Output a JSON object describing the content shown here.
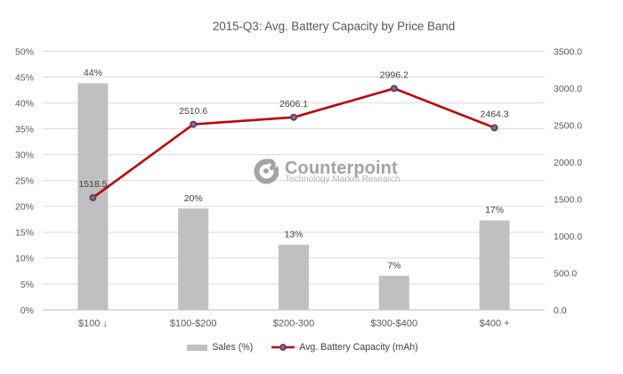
{
  "title": "2015-Q3: Avg. Battery Capacity by Price Band",
  "watermark": {
    "brand": "Counterpoint",
    "tagline": "Technology Market Research"
  },
  "legend": {
    "bar_label": "Sales (%)",
    "line_label": "Avg. Battery Capacity (mAh)"
  },
  "chart_data": {
    "type": "combo-bar-line",
    "title": "2015-Q3: Avg. Battery Capacity by Price Band",
    "categories": [
      "$100 ↓",
      "$100-$200",
      "$200-300",
      "$300-$400",
      "$400 +"
    ],
    "series": [
      {
        "name": "Sales (%)",
        "type": "bar",
        "axis": "left",
        "values": [
          43.8,
          19.6,
          12.6,
          6.6,
          17.3
        ],
        "labels": [
          "44%",
          "20%",
          "13%",
          "7%",
          "17%"
        ],
        "color": "#c0c0c0"
      },
      {
        "name": "Avg. Battery Capacity (mAh)",
        "type": "line",
        "axis": "right",
        "values": [
          1518.5,
          2510.6,
          2606.1,
          2996.2,
          2464.3
        ],
        "labels": [
          "1518.5",
          "2510.6",
          "2606.1",
          "2996.2",
          "2464.3"
        ],
        "color": "#c00000",
        "marker_fill": "#4e86c2",
        "marker_stroke": "#7e2f42"
      }
    ],
    "left_axis": {
      "min": 0,
      "max": 50,
      "step": 5,
      "ticks": [
        "0%",
        "5%",
        "10%",
        "15%",
        "20%",
        "25%",
        "30%",
        "35%",
        "40%",
        "45%",
        "50%"
      ]
    },
    "right_axis": {
      "min": 0,
      "max": 3500,
      "step": 500,
      "ticks": [
        "0.0",
        "500.0",
        "1000.0",
        "1500.0",
        "2000.0",
        "2500.0",
        "3000.0",
        "3500.0"
      ]
    },
    "grid": true,
    "legend_position": "bottom"
  },
  "colors": {
    "gridline": "#d9d9d9",
    "axis_line": "#bdbdbd",
    "tick_label": "#595959",
    "data_label": "#404040",
    "title": "#595959",
    "bar": "#c0c0c0",
    "line": "#c00000",
    "marker_fill": "#4e86c2",
    "marker_stroke": "#7e2f42"
  }
}
